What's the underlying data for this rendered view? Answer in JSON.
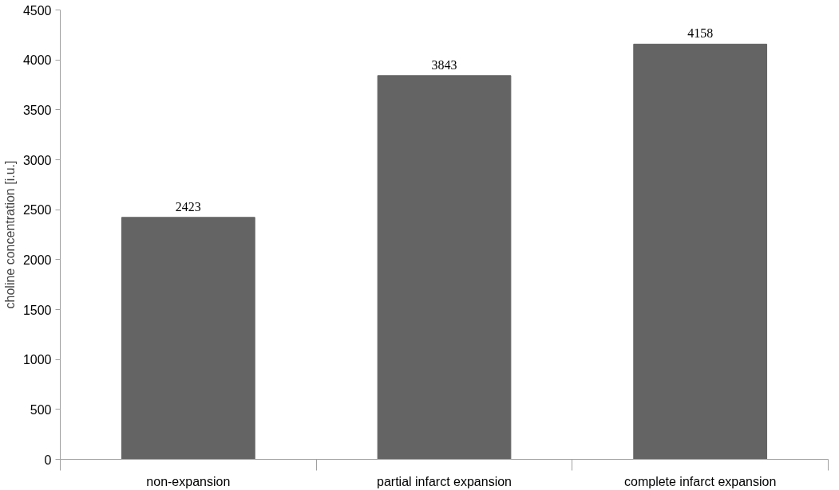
{
  "chart_data": {
    "type": "bar",
    "ylabel": "choline concentration [i.u.]",
    "categories": [
      "non-expansion",
      "partial infarct expansion",
      "complete infarct expansion"
    ],
    "values": [
      2423,
      3843,
      4158
    ],
    "color": "#646464",
    "ylim": [
      0,
      4500
    ],
    "yticks": [
      0,
      500,
      1000,
      1500,
      2000,
      2500,
      3000,
      3500,
      4000,
      4500
    ],
    "data_labels": true,
    "grid": false
  }
}
